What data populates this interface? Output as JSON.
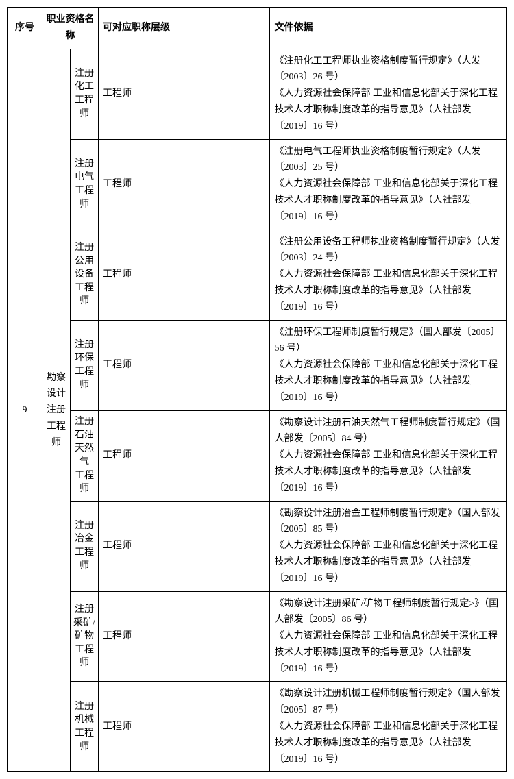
{
  "table": {
    "headers": {
      "seq": "序号",
      "name": "职业资格名称",
      "level": "可对应职称层级",
      "basis": "文件依据"
    },
    "seq_value": "9",
    "category": "勘察设计\n注册工程师",
    "rows": [
      {
        "sub": "注册\n化工\n工程师",
        "level": "工程师",
        "basis": "《注册化工工程师执业资格制度暂行规定》（人发〔2003〕26 号）\n《人力资源社会保障部 工业和信息化部关于深化工程技术人才职称制度改革的指导意见》（人社部发〔2019〕16 号）"
      },
      {
        "sub": "注册\n电气\n工程师",
        "level": "工程师",
        "basis": "《注册电气工程师执业资格制度暂行规定》（人发〔2003〕25 号）\n《人力资源社会保障部 工业和信息化部关于深化工程技术人才职称制度改革的指导意见》（人社部发〔2019〕16 号）"
      },
      {
        "sub": "注册\n公用\n设备\n工程师",
        "level": "工程师",
        "basis": "《注册公用设备工程师执业资格制度暂行规定》（人发〔2003〕24 号）\n《人力资源社会保障部 工业和信息化部关于深化工程技术人才职称制度改革的指导意见》（人社部发〔2019〕16 号）"
      },
      {
        "sub": "注册\n环保\n工程师",
        "level": "工程师",
        "basis": "《注册环保工程师制度暂行规定》（国人部发〔2005〕56 号）\n《人力资源社会保障部 工业和信息化部关于深化工程技术人才职称制度改革的指导意见》（人社部发〔2019〕16 号）"
      },
      {
        "sub": "注册\n石油\n天然气\n工程师",
        "level": "工程师",
        "basis": "《勘察设计注册石油天然气工程师制度暂行规定》（国人部发〔2005〕84 号）\n《人力资源社会保障部 工业和信息化部关于深化工程技术人才职称制度改革的指导意见》（人社部发〔2019〕16 号）"
      },
      {
        "sub": "注册\n冶金\n工程师",
        "level": "工程师",
        "basis": "《勘察设计注册冶金工程师制度暂行规定》（国人部发〔2005〕85 号）\n《人力资源社会保障部 工业和信息化部关于深化工程技术人才职称制度改革的指导意见》（人社部发〔2019〕16 号）"
      },
      {
        "sub": "注册\n采矿/\n矿物\n工程师",
        "level": "工程师",
        "basis": "《勘察设计注册采矿/矿物工程师制度暂行规定>》（国人部发〔2005〕86 号）\n《人力资源社会保障部 工业和信息化部关于深化工程技术人才职称制度改革的指导意见》（人社部发〔2019〕16 号）"
      },
      {
        "sub": "注册\n机械\n工程师",
        "level": "工程师",
        "basis": "《勘察设计注册机械工程师制度暂行规定》（国人部发〔2005〕87 号）\n《人力资源社会保障部 工业和信息化部关于深化工程技术人才职称制度改革的指导意见》（人社部发〔2019〕16 号）"
      }
    ]
  }
}
